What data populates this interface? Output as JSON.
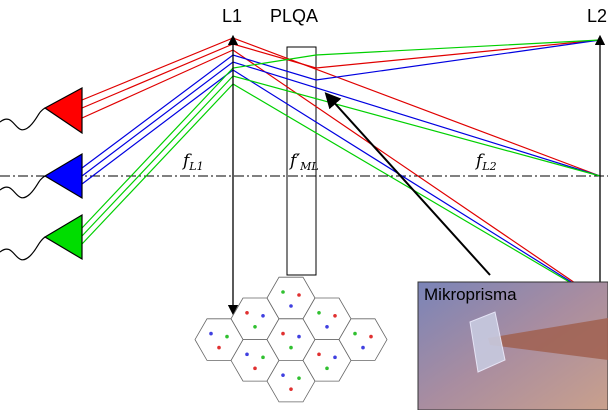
{
  "labels": {
    "lens1": "L1",
    "plqa": "PLQA",
    "lens2": "L2",
    "focal_l1": {
      "symbol": "f",
      "subscript": "L1"
    },
    "focal_ml": {
      "symbol": "f′",
      "subscript": "ML"
    },
    "focal_l2": {
      "symbol": "f",
      "subscript": "L2"
    },
    "inset": "Mikroprisma"
  }
}
